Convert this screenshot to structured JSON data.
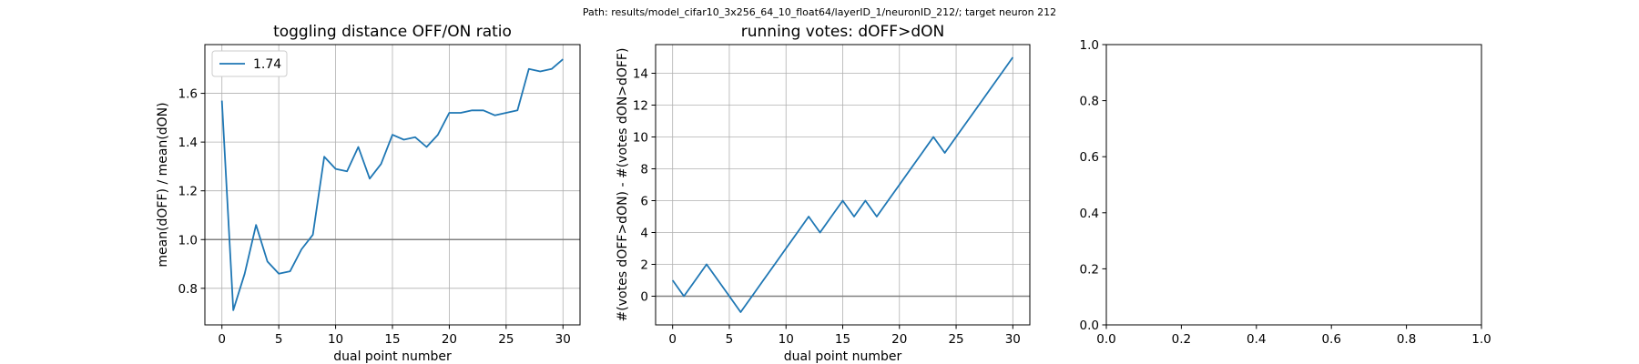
{
  "suptitle": "Path: results/model_cifar10_3x256_64_10_float64/layerID_1/neuronID_212/; target neuron 212",
  "chart_data": [
    {
      "type": "line",
      "title": "toggling distance OFF/ON ratio",
      "xlabel": "dual point number",
      "ylabel": "mean(dOFF) / mean(dON)",
      "xlim": [
        -1.5,
        31.5
      ],
      "ylim": [
        0.65,
        1.8
      ],
      "xticks": [
        0,
        5,
        10,
        15,
        20,
        25,
        30
      ],
      "yticks": [
        0.8,
        1.0,
        1.2,
        1.4,
        1.6
      ],
      "ytick_labels": [
        "0.8",
        "1.0",
        "1.2",
        "1.4",
        "1.6"
      ],
      "grid": true,
      "reference_line": 1.0,
      "legend": "top-left",
      "series": [
        {
          "name": "1.74",
          "color": "#1f77b4",
          "x": [
            0,
            1,
            2,
            3,
            4,
            5,
            6,
            7,
            8,
            9,
            10,
            11,
            12,
            13,
            14,
            15,
            16,
            17,
            18,
            19,
            20,
            21,
            22,
            23,
            24,
            25,
            26,
            27,
            28,
            29,
            30
          ],
          "values": [
            1.57,
            0.71,
            0.86,
            1.06,
            0.91,
            0.86,
            0.87,
            0.96,
            1.02,
            1.34,
            1.29,
            1.28,
            1.38,
            1.25,
            1.31,
            1.43,
            1.41,
            1.42,
            1.38,
            1.43,
            1.52,
            1.52,
            1.53,
            1.53,
            1.51,
            1.52,
            1.53,
            1.7,
            1.69,
            1.7,
            1.74
          ]
        }
      ]
    },
    {
      "type": "line",
      "title": "running votes: dOFF>dON",
      "xlabel": "dual point number",
      "ylabel": "#(votes dOFF>dON) - #(votes dON>dOFF)",
      "xlim": [
        -1.5,
        31.5
      ],
      "ylim": [
        -1.8,
        15.8
      ],
      "xticks": [
        0,
        5,
        10,
        15,
        20,
        25,
        30
      ],
      "yticks": [
        0,
        2,
        4,
        6,
        8,
        10,
        12,
        14
      ],
      "ytick_labels": [
        "0",
        "2",
        "4",
        "6",
        "8",
        "10",
        "12",
        "14"
      ],
      "grid": true,
      "reference_line": 0,
      "series": [
        {
          "color": "#1f77b4",
          "x": [
            0,
            1,
            2,
            3,
            4,
            5,
            6,
            7,
            8,
            9,
            10,
            11,
            12,
            13,
            14,
            15,
            16,
            17,
            18,
            19,
            20,
            21,
            22,
            23,
            24,
            25,
            26,
            27,
            28,
            29,
            30
          ],
          "values": [
            1,
            0,
            1,
            2,
            1,
            0,
            -1,
            0,
            1,
            2,
            3,
            4,
            5,
            4,
            5,
            6,
            5,
            6,
            5,
            6,
            7,
            8,
            9,
            10,
            9,
            10,
            11,
            12,
            13,
            14,
            15
          ]
        }
      ]
    },
    {
      "type": "line",
      "title": "",
      "xlabel": "",
      "ylabel": "",
      "xlim": [
        0,
        1
      ],
      "ylim": [
        0,
        1
      ],
      "xticks": [
        0,
        0.2,
        0.4,
        0.6,
        0.8,
        1.0
      ],
      "yticks": [
        0,
        0.2,
        0.4,
        0.6,
        0.8,
        1.0
      ],
      "xtick_labels": [
        "0.0",
        "0.2",
        "0.4",
        "0.6",
        "0.8",
        "1.0"
      ],
      "ytick_labels": [
        "0.0",
        "0.2",
        "0.4",
        "0.6",
        "0.8",
        "1.0"
      ],
      "grid": false,
      "series": []
    }
  ]
}
